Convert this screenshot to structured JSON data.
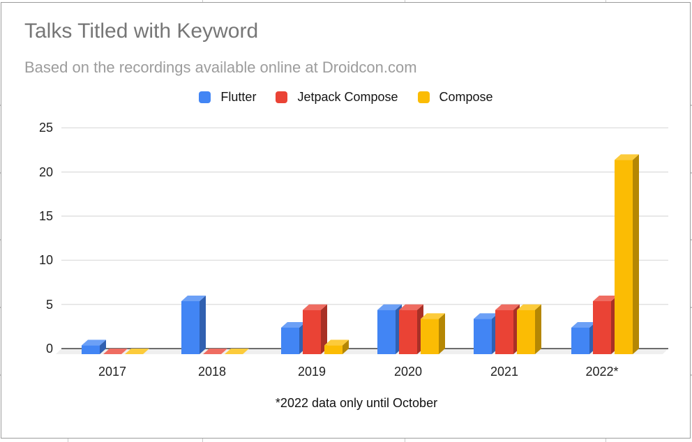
{
  "header": {
    "title": "Talks Titled with Keyword",
    "subtitle": "Based on the recordings available online at Droidcon.com"
  },
  "footnote": "*2022 data only until October",
  "chart_data": {
    "type": "bar",
    "style": "pseudo-3d-column",
    "title": "Talks Titled with Keyword",
    "subtitle": "Based on the recordings available online at Droidcon.com",
    "categories": [
      "2017",
      "2018",
      "2019",
      "2020",
      "2021",
      "2022*"
    ],
    "series": [
      {
        "name": "Flutter",
        "color": "#4285F4",
        "values": [
          1,
          6,
          3,
          5,
          4,
          3
        ]
      },
      {
        "name": "Jetpack Compose",
        "color": "#EA4335",
        "values": [
          0,
          0,
          5,
          5,
          5,
          6
        ]
      },
      {
        "name": "Compose",
        "color": "#FBBC04",
        "values": [
          0,
          0,
          1,
          4,
          5,
          22
        ]
      }
    ],
    "yticks": [
      0,
      5,
      10,
      15,
      20,
      25
    ],
    "ylim": [
      0,
      25
    ],
    "grid": true,
    "legend_position": "top",
    "axis_line_color": "#3f3f3f",
    "gridline_color": "#e1e1e1",
    "floor_color": "#efefef",
    "footnote": "*2022 data only until October"
  }
}
